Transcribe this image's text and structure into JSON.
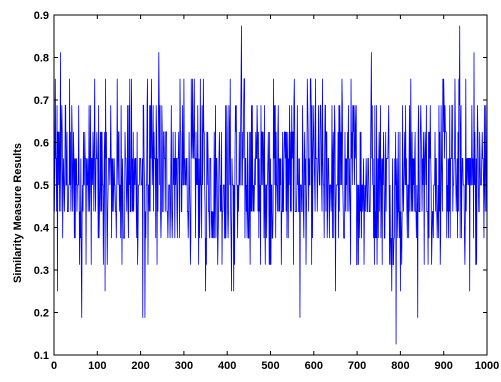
{
  "chart_data": {
    "type": "line",
    "title": "",
    "xlabel": "",
    "ylabel": "Similarity Measure Results",
    "xlim": [
      0,
      1000
    ],
    "ylim": [
      0.1,
      0.9
    ],
    "xticks": [
      0,
      100,
      200,
      300,
      400,
      500,
      600,
      700,
      800,
      900,
      1000
    ],
    "yticks": [
      0.1,
      0.2,
      0.3,
      0.4,
      0.5,
      0.6,
      0.7,
      0.8,
      0.9
    ],
    "xtick_labels": [
      "0",
      "100",
      "200",
      "300",
      "400",
      "500",
      "600",
      "700",
      "800",
      "900",
      "1000"
    ],
    "ytick_labels": [
      "0.1",
      "0.2",
      "0.3",
      "0.4",
      "0.5",
      "0.6",
      "0.7",
      "0.8",
      "0.9"
    ],
    "grid": false,
    "legend": "none",
    "series": [
      {
        "color": "#0000ff",
        "description": "1000 samples of a discrete-valued signal fluctuating mostly between 0.31 and 0.69 around a mean of about 0.5, values on a 1/16 lattice, with rare excursions",
        "level_values": [
          0.125,
          0.1875,
          0.25,
          0.3125,
          0.375,
          0.4375,
          0.5,
          0.5625,
          0.625,
          0.6875,
          0.75,
          0.8125,
          0.875
        ],
        "peaks": [
          {
            "x": 433,
            "y": 0.875
          },
          {
            "x": 937,
            "y": 0.875
          },
          {
            "x": 15,
            "y": 0.8125
          },
          {
            "x": 242,
            "y": 0.8125
          },
          {
            "x": 733,
            "y": 0.8125
          },
          {
            "x": 970,
            "y": 0.8125
          },
          {
            "x": 790,
            "y": 0.125
          },
          {
            "x": 64,
            "y": 0.1875
          },
          {
            "x": 205,
            "y": 0.1875
          },
          {
            "x": 210,
            "y": 0.1875
          },
          {
            "x": 568,
            "y": 0.1875
          },
          {
            "x": 840,
            "y": 0.1875
          }
        ]
      }
    ]
  }
}
